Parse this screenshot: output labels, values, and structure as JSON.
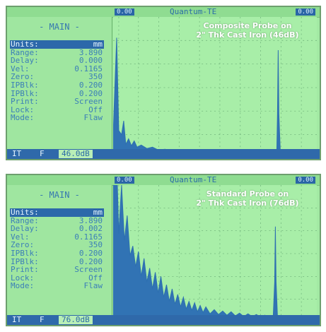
{
  "panels": [
    {
      "top_left": "0.00",
      "title": "Quantum-TE",
      "top_right": "0.00",
      "menu_header": "- MAIN -",
      "menu_items": [
        {
          "label": "Units:",
          "value": "mm"
        },
        {
          "label": "Range:",
          "value": "3.890"
        },
        {
          "label": "Delay:",
          "value": "0.000"
        },
        {
          "label": "Vel:",
          "value": "0.1165"
        },
        {
          "label": "Zero:",
          "value": "350"
        },
        {
          "label": "IPBlk:",
          "value": "0.200"
        },
        {
          "label": "IPBlk:",
          "value": "0.200"
        },
        {
          "label": "Print:",
          "value": "Screen"
        },
        {
          "label": "Lock:",
          "value": "Off"
        },
        {
          "label": "Mode:",
          "value": "Flaw"
        }
      ],
      "footer_mode": "IT",
      "footer_f": "F",
      "footer_gain": "46.0dB",
      "probe_label_line1": "Composite Probe on",
      "probe_label_line2": "2\" Thk Cast Iron (46dB)"
    },
    {
      "top_left": "0.00",
      "title": "Quantum-TE",
      "top_right": "0.00",
      "menu_header": "- MAIN -",
      "menu_items": [
        {
          "label": "Units:",
          "value": "mm"
        },
        {
          "label": "Range:",
          "value": "3.890"
        },
        {
          "label": "Delay:",
          "value": "0.002"
        },
        {
          "label": "Vel:",
          "value": "0.1165"
        },
        {
          "label": "Zero:",
          "value": "350"
        },
        {
          "label": "IPBlk:",
          "value": "0.200"
        },
        {
          "label": "IPBlk:",
          "value": "0.200"
        },
        {
          "label": "Print:",
          "value": "Screen"
        },
        {
          "label": "Lock:",
          "value": "Off"
        },
        {
          "label": "Mode:",
          "value": "Flaw"
        }
      ],
      "footer_mode": "IT",
      "footer_f": "F",
      "footer_gain": "76.0dB",
      "probe_label_line1": "Standard Probe on",
      "probe_label_line2": "2\" Thk Cast Iron (76dB)"
    }
  ],
  "colors": {
    "trace": "#3173b4",
    "grid": "#6fb27a"
  }
}
